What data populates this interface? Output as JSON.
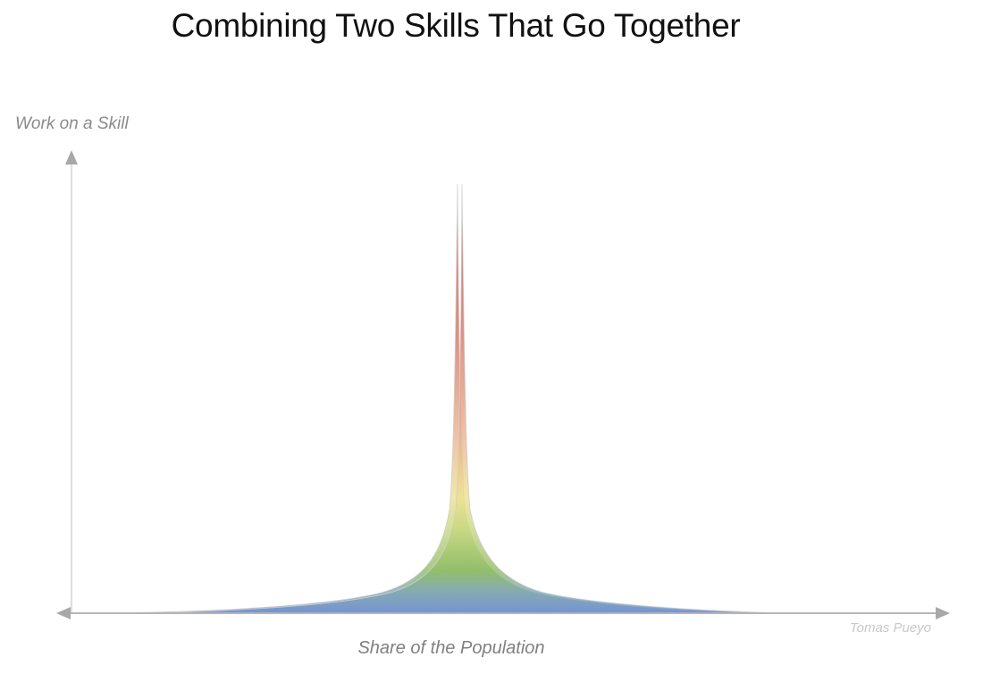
{
  "title": "Combining Two Skills That Go Together",
  "y_axis_label": "Work on a Skill",
  "x_axis_label": "Share of the Population",
  "credit": "Tomas Pueyo",
  "colors": {
    "axis": "#b5b5b5",
    "arrow": "#a8a8a8",
    "gradient": [
      "#6f8fd0",
      "#8dbb63",
      "#e9dd92",
      "#e7b28f",
      "#c8473b"
    ]
  }
}
